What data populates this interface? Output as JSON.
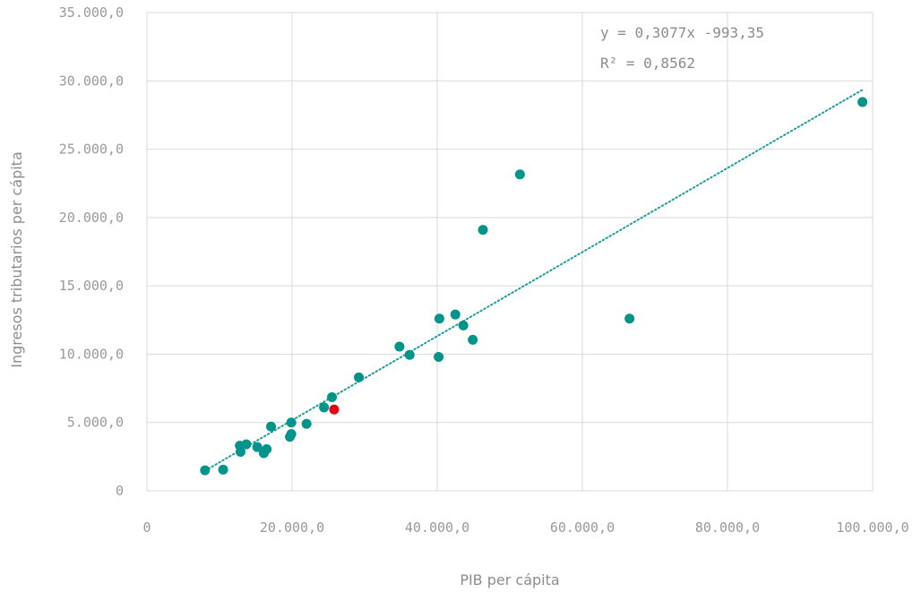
{
  "chart_data": {
    "type": "scatter",
    "title": "",
    "xlabel": "PIB per cápita",
    "ylabel": "Ingresos tributarios per cápita",
    "xlim": [
      0,
      100000
    ],
    "ylim": [
      0,
      35000
    ],
    "x_ticks": [
      0,
      20000,
      40000,
      60000,
      80000,
      100000
    ],
    "y_ticks": [
      0,
      5000,
      10000,
      15000,
      20000,
      25000,
      30000,
      35000
    ],
    "x_tick_labels": [
      "0",
      "20.000,0",
      "40.000,0",
      "60.000,0",
      "80.000,0",
      "100.000,0"
    ],
    "y_tick_labels": [
      "0",
      "5.000,0",
      "10.000,0",
      "15.000,0",
      "20.000,0",
      "25.000,0",
      "30.000,0",
      "35.000,0"
    ],
    "grid": true,
    "colors": {
      "points": "#00948a",
      "highlight": "#e30613",
      "trendline": "#1a9f9a",
      "grid": "#d9d9d9"
    },
    "points": [
      {
        "x": 8000,
        "y": 1500
      },
      {
        "x": 10500,
        "y": 1550
      },
      {
        "x": 12800,
        "y": 3300
      },
      {
        "x": 12900,
        "y": 2850
      },
      {
        "x": 13700,
        "y": 3400
      },
      {
        "x": 15200,
        "y": 3200
      },
      {
        "x": 16100,
        "y": 2750
      },
      {
        "x": 16500,
        "y": 3050
      },
      {
        "x": 17100,
        "y": 4700
      },
      {
        "x": 19700,
        "y": 3950
      },
      {
        "x": 19900,
        "y": 4150
      },
      {
        "x": 19900,
        "y": 5000
      },
      {
        "x": 22000,
        "y": 4900
      },
      {
        "x": 24400,
        "y": 6100
      },
      {
        "x": 25500,
        "y": 6850
      },
      {
        "x": 29200,
        "y": 8300
      },
      {
        "x": 34800,
        "y": 10550
      },
      {
        "x": 36200,
        "y": 9950
      },
      {
        "x": 40200,
        "y": 9800
      },
      {
        "x": 40300,
        "y": 12600
      },
      {
        "x": 42500,
        "y": 12900
      },
      {
        "x": 43600,
        "y": 12100
      },
      {
        "x": 44900,
        "y": 11050
      },
      {
        "x": 46300,
        "y": 19100
      },
      {
        "x": 51400,
        "y": 23150
      },
      {
        "x": 66500,
        "y": 12600
      },
      {
        "x": 98600,
        "y": 28450
      }
    ],
    "highlight_points": [
      {
        "x": 25800,
        "y": 5950
      }
    ],
    "trendline": {
      "type": "linear",
      "slope": 0.3077,
      "intercept": -993.35,
      "x_range": [
        8000,
        98600
      ],
      "style": "dotted",
      "equation_label": "y = 0,3077x -993,35",
      "r2_label": "R² = 0,8562"
    }
  }
}
